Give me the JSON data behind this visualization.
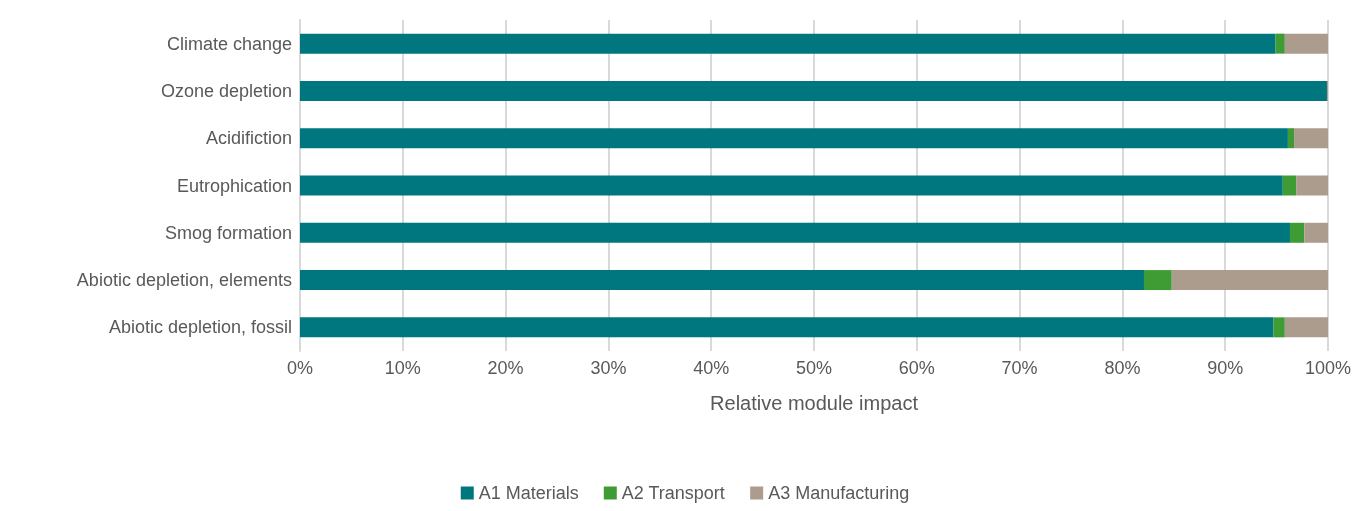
{
  "chart_data": {
    "type": "bar",
    "orientation": "horizontal",
    "stacked": true,
    "categories": [
      "Climate change",
      "Ozone depletion",
      "Acidifiction",
      "Eutrophication",
      "Smog formation",
      "Abiotic depletion, elements",
      "Abiotic depletion, fossil"
    ],
    "series": [
      {
        "name": "A1 Materials",
        "color": "#00777f",
        "values": [
          94.9,
          99.9,
          96.1,
          95.6,
          96.3,
          82.1,
          94.7
        ]
      },
      {
        "name": "A2 Transport",
        "color": "#3f9c35",
        "values": [
          0.9,
          0,
          0.6,
          1.3,
          1.4,
          2.7,
          1.1
        ]
      },
      {
        "name": "A3 Manufacturing",
        "color": "#ac9c8d",
        "values": [
          4.2,
          0.1,
          3.3,
          3.1,
          2.3,
          15.2,
          4.2
        ]
      }
    ],
    "xlabel": "Relative module impact",
    "xlim": [
      0,
      100
    ],
    "xticks": [
      {
        "value": 0,
        "label": "0%"
      },
      {
        "value": 10,
        "label": "10%"
      },
      {
        "value": 20,
        "label": "20%"
      },
      {
        "value": 30,
        "label": "30%"
      },
      {
        "value": 40,
        "label": "40%"
      },
      {
        "value": 50,
        "label": "50%"
      },
      {
        "value": 60,
        "label": "60%"
      },
      {
        "value": 70,
        "label": "70%"
      },
      {
        "value": 80,
        "label": "80%"
      },
      {
        "value": 90,
        "label": "90%"
      },
      {
        "value": 100,
        "label": "100%"
      }
    ],
    "grid": "x",
    "legend": "bottom"
  }
}
